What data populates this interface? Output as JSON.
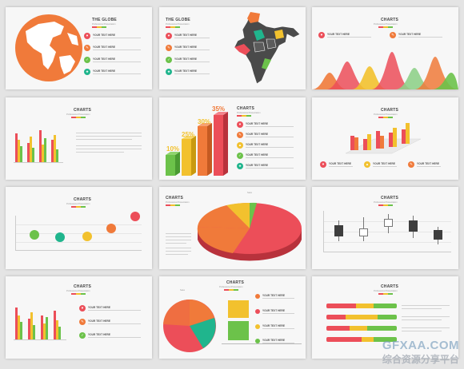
{
  "slides": {
    "globe1": {
      "title": "THE GLOBE",
      "subtitle": "Professional Presentation",
      "features": [
        {
          "label": "YOUR TEXT HERE"
        },
        {
          "label": "YOUR TEXT HERE"
        },
        {
          "label": "YOUR TEXT HERE"
        },
        {
          "label": "YOUR TEXT HERE"
        }
      ]
    },
    "globe2": {
      "title": "THE GLOBE",
      "subtitle": "Professional Presentation",
      "features": [
        {
          "label": "YOUR TEXT HERE"
        },
        {
          "label": "YOUR TEXT HERE"
        },
        {
          "label": "YOUR TEXT HERE"
        },
        {
          "label": "YOUR TEXT HERE"
        }
      ]
    },
    "mountains": {
      "title": "CHARTS",
      "subtitle": "Professional Presentation",
      "features": [
        {
          "label": "YOUR TEXT HERE"
        },
        {
          "label": "YOUR TEXT HERE"
        }
      ]
    },
    "bars2d": {
      "title": "CHARTS",
      "subtitle": "Professional Presentation"
    },
    "bars3d": {
      "title": "CHARTS",
      "subtitle": "Professional Presentation",
      "percents": [
        "10%",
        "25%",
        "30%",
        "35%"
      ],
      "features": [
        {
          "label": "YOUR TEXT HERE"
        },
        {
          "label": "YOUR TEXT HERE"
        },
        {
          "label": "YOUR TEXT HERE"
        },
        {
          "label": "YOUR TEXT HERE"
        },
        {
          "label": "YOUR TEXT HERE"
        }
      ]
    },
    "cyl3d": {
      "title": "CHARTS",
      "subtitle": "Professional Presentation",
      "features": [
        {
          "label": "YOUR TEXT HERE"
        },
        {
          "label": "YOUR TEXT HERE"
        },
        {
          "label": "YOUR TEXT HERE"
        }
      ]
    },
    "bubbles": {
      "title": "CHARTS",
      "subtitle": "Professional Presentation"
    },
    "pie3d": {
      "title": "CHARTS",
      "subtitle": "Professional Presentation",
      "chart_label": "Sales"
    },
    "candle": {
      "title": "CHARTS",
      "subtitle": "Professional Presentation"
    },
    "barsfeat": {
      "title": "CHARTS",
      "subtitle": "Professional Presentation",
      "features": [
        {
          "label": "YOUR TEXT HERE"
        },
        {
          "label": "YOUR TEXT HERE"
        },
        {
          "label": "YOUR TEXT HERE"
        }
      ]
    },
    "pie2d": {
      "title": "CHARTS",
      "subtitle": "Professional Presentation",
      "chart_label": "Sales",
      "features": [
        {
          "label": "YOUR TEXT HERE"
        },
        {
          "label": "YOUR TEXT HERE"
        },
        {
          "label": "YOUR TEXT HERE"
        },
        {
          "label": "YOUR TEXT HERE"
        }
      ]
    },
    "hbars": {
      "title": "CHARTS",
      "subtitle": "Professional Presentation"
    }
  },
  "watermark": {
    "line1": "GFXAA.COM",
    "line2": "综合资源分享平台"
  },
  "colors": {
    "orange": "#f07a3a",
    "red": "#ec4e59",
    "yellow": "#f2c12e",
    "green": "#6cc24a",
    "teal": "#20b58d",
    "gray": "#555555"
  }
}
